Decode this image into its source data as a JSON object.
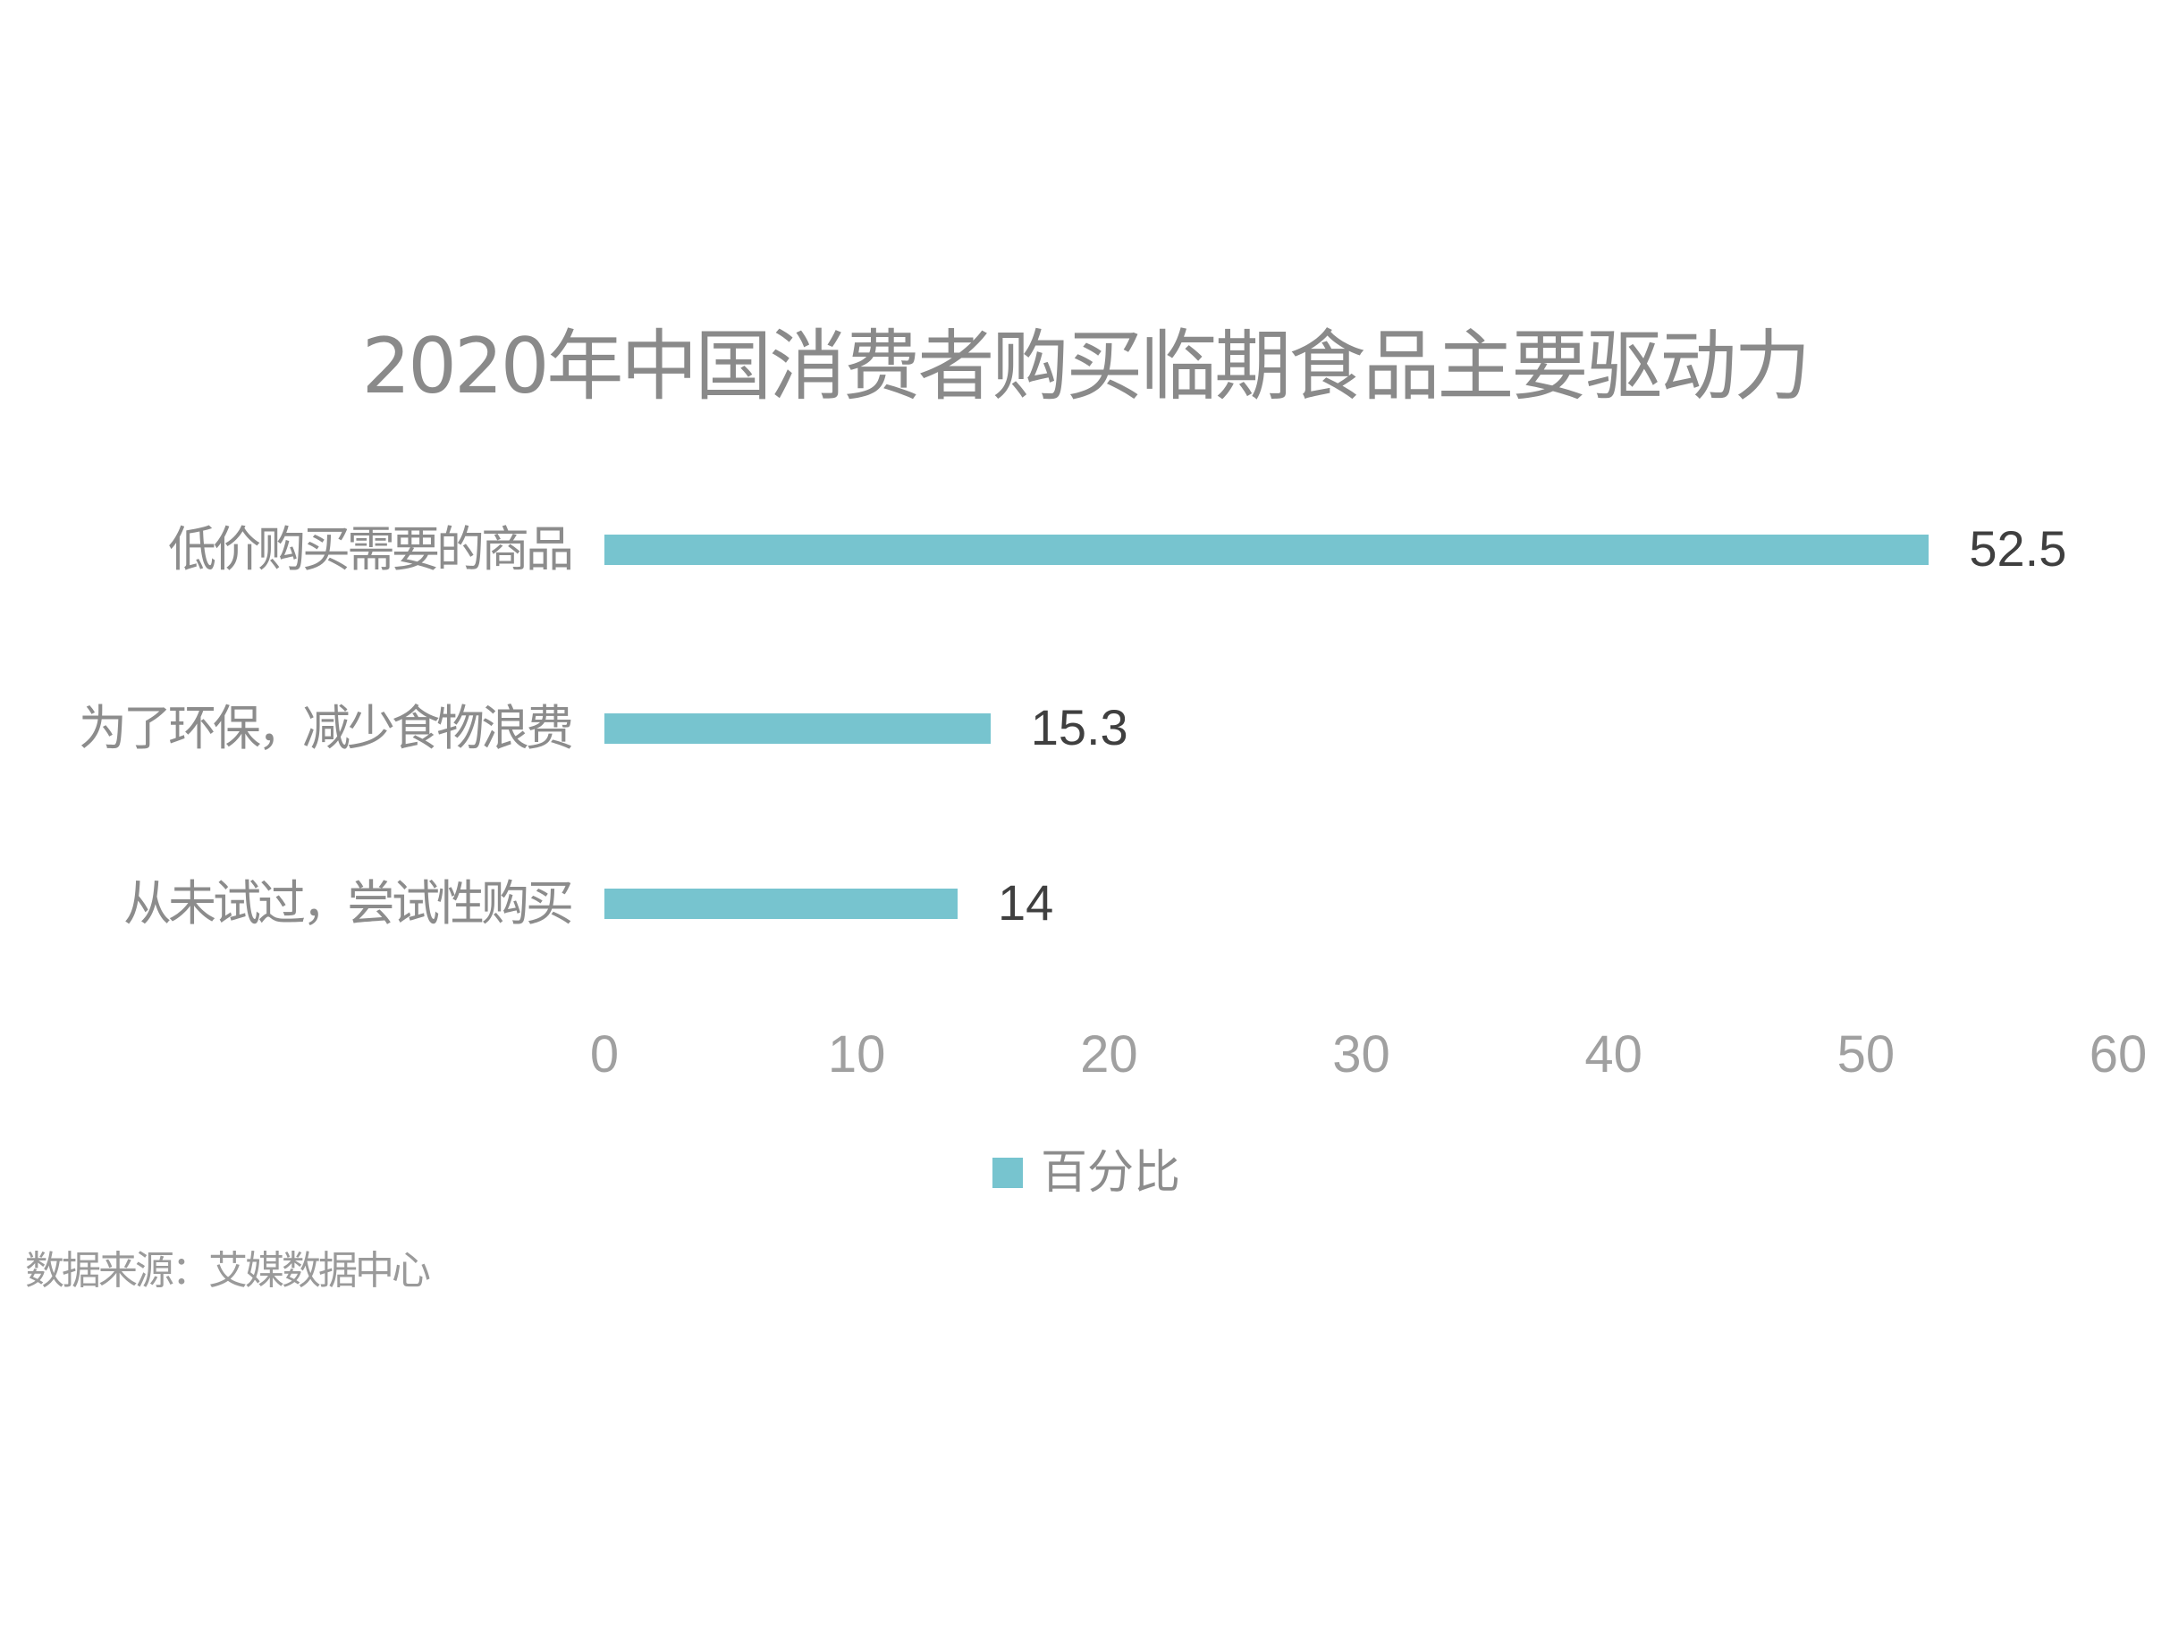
{
  "chart_data": {
    "type": "bar",
    "orientation": "horizontal",
    "title": "2020年中国消费者购买临期食品主要驱动力",
    "categories": [
      "低价购买需要的商品",
      "为了环保，减少食物浪费",
      "从未试过，尝试性购买"
    ],
    "series": [
      {
        "name": "百分比",
        "color": "#77c4cf",
        "values": [
          52.5,
          15.3,
          14
        ]
      }
    ],
    "value_labels": [
      "52.5",
      "15.3",
      "14"
    ],
    "xlabel": "",
    "ylabel": "",
    "xlim": [
      0,
      60
    ],
    "xticks": [
      "0",
      "10",
      "20",
      "30",
      "40",
      "50",
      "60"
    ],
    "grid": false,
    "legend_position": "bottom",
    "source": "数据来源：艾媒数据中心"
  },
  "title": "2020年中国消费者购买临期食品主要驱动力",
  "legend": {
    "label": "百分比",
    "color": "#77c4cf"
  },
  "source_note": "数据来源：艾媒数据中心"
}
